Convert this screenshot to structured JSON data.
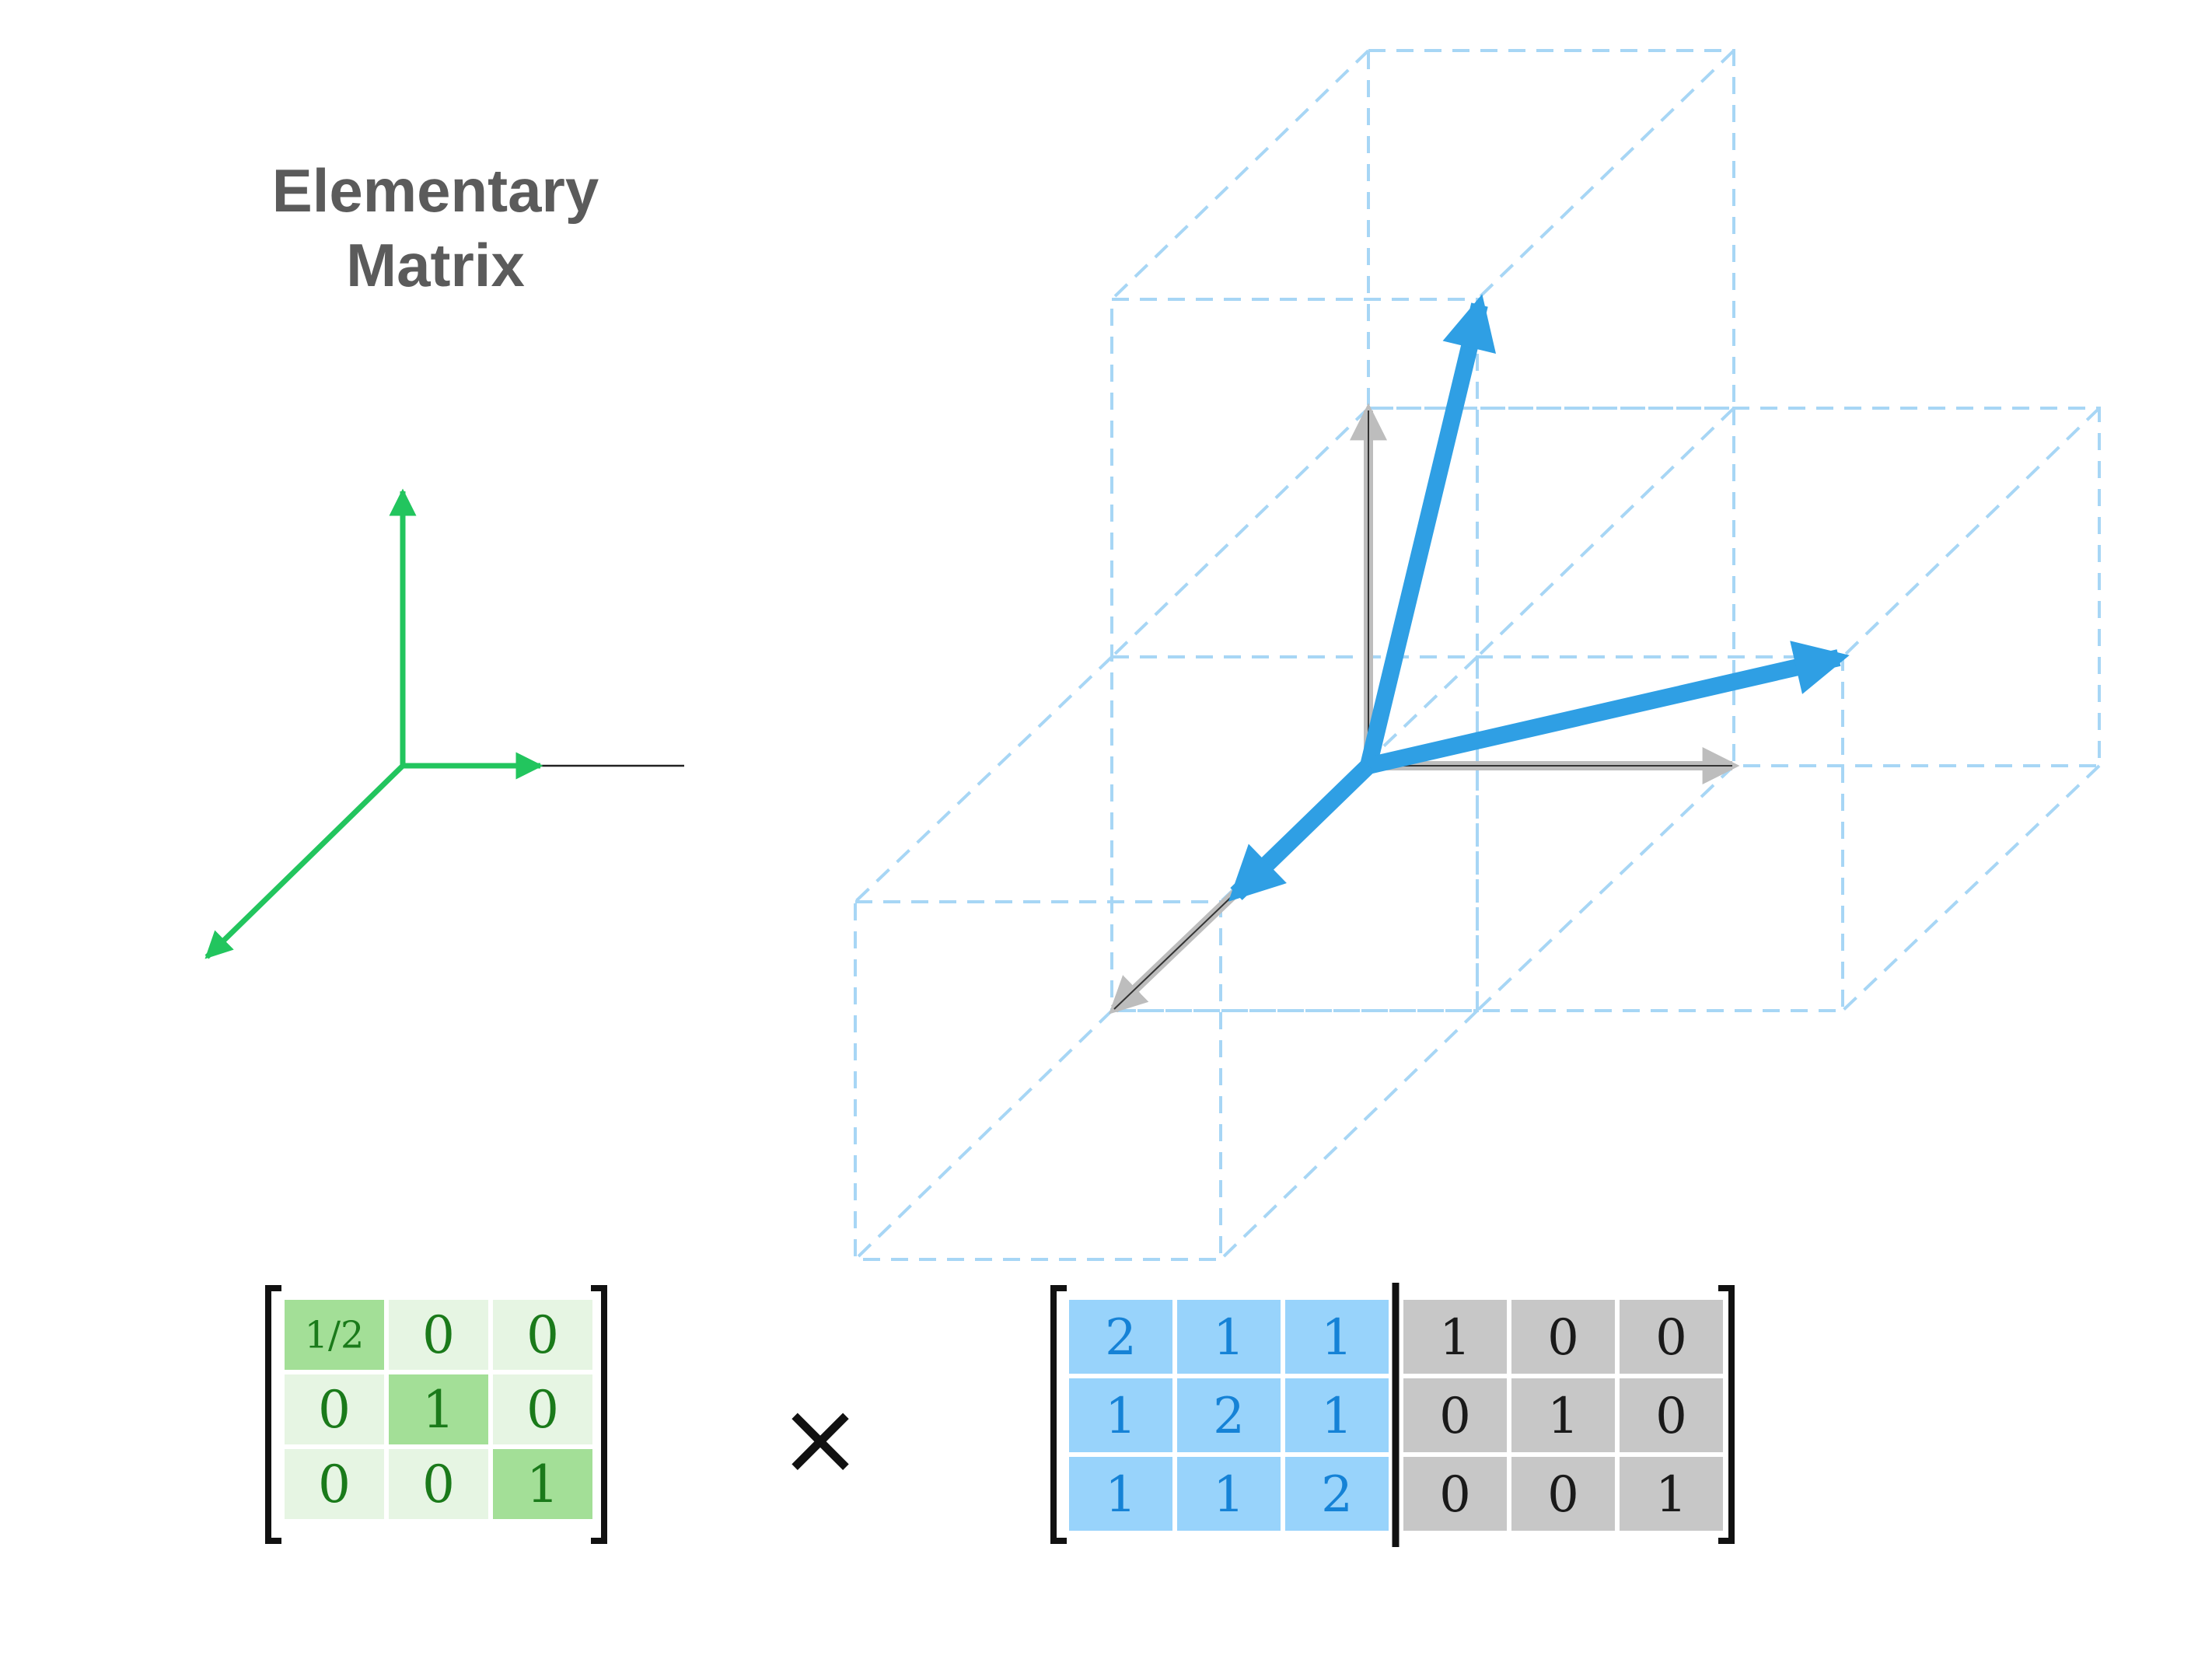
{
  "title": {
    "line1": "Elementary",
    "line2": "Matrix"
  },
  "operator": "×",
  "colors": {
    "green_arrow": "#22c55e",
    "green_dark": "#167a2c",
    "blue_arrow": "#2f9fe4",
    "blue_dashed": "#a7d6f5",
    "gray_arrow": "#b8b8b8",
    "green_cell_light": "#e6f5e3",
    "green_cell_dark": "#a3df97",
    "green_text": "#1a7a1a",
    "blue_cell": "#98d3fb",
    "blue_text": "#1582d6",
    "gray_cell": "#c7c7c7",
    "gray_text": "#1a1a1a"
  },
  "elementary_matrix": [
    [
      "1/2",
      "0",
      "0"
    ],
    [
      "0",
      "1",
      "0"
    ],
    [
      "0",
      "0",
      "1"
    ]
  ],
  "augmented_left": [
    [
      "2",
      "1",
      "1"
    ],
    [
      "1",
      "2",
      "1"
    ],
    [
      "1",
      "1",
      "2"
    ]
  ],
  "augmented_right": [
    [
      "1",
      "0",
      "0"
    ],
    [
      "0",
      "1",
      "0"
    ],
    [
      "0",
      "0",
      "1"
    ]
  ]
}
